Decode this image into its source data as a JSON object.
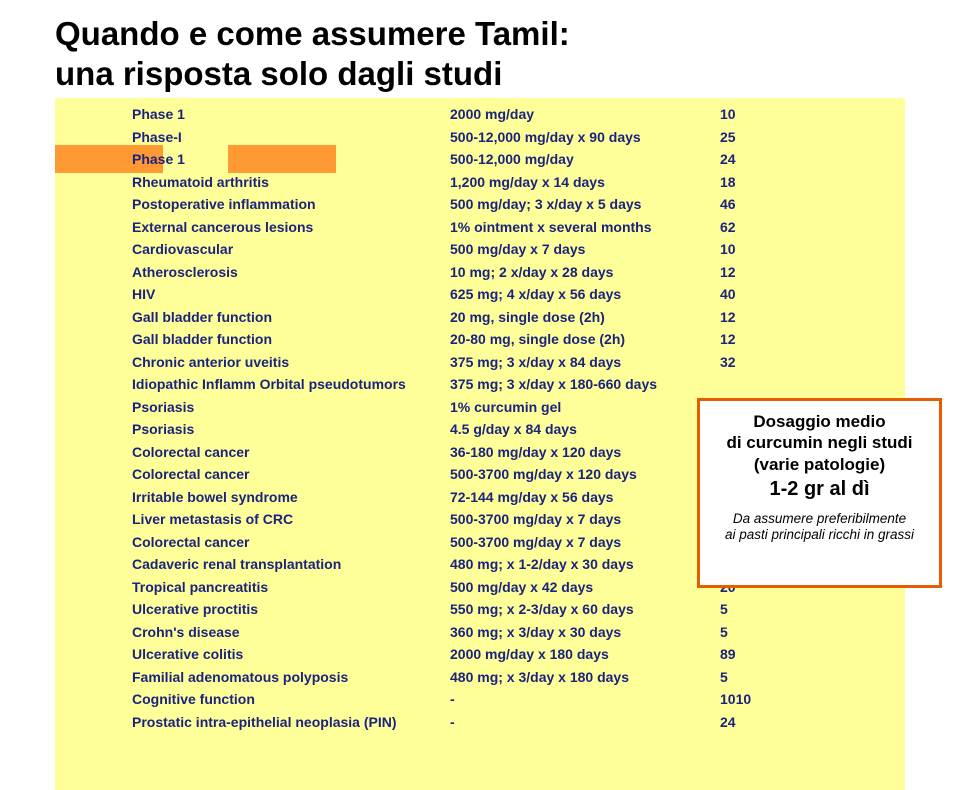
{
  "title": "Quando e come assumere Tamil:\nuna risposta solo dagli studi",
  "callout": {
    "text1": "Dosaggio medio\ndi curcumin negli studi\n(varie patologie)",
    "text2": "1-2 gr al dì",
    "note": "Da assumere preferibilmente\nai pasti principali ricchi in grassi"
  },
  "colors": {
    "page_bg": "#ffffff",
    "yellow_bg": "#ffff99",
    "orange_accent": "#ff9933",
    "callout_border": "#e65c00",
    "text_title": "#000000",
    "text_table": "#1a237e"
  },
  "fontsize": {
    "title": 33,
    "table": 14,
    "callout_main": 17,
    "callout_big": 20,
    "callout_small": 13.5
  },
  "rows": [
    {
      "cond": "Phase 1",
      "dose": "2000 mg/day",
      "n": "10"
    },
    {
      "cond": "Phase-I",
      "dose": "500-12,000 mg/day x 90 days",
      "n": "25"
    },
    {
      "cond": "Phase 1",
      "dose": "500-12,000 mg/day",
      "n": "24"
    },
    {
      "cond": "Rheumatoid arthritis",
      "dose": "1,200 mg/day x 14 days",
      "n": "18"
    },
    {
      "cond": "Postoperative inflammation",
      "dose": "500 mg/day; 3 x/day x 5 days",
      "n": "46"
    },
    {
      "cond": "External cancerous lesions",
      "dose": "1% ointment x several months",
      "n": "62"
    },
    {
      "cond": "Cardiovascular",
      "dose": "500 mg/day x 7 days",
      "n": "10"
    },
    {
      "cond": "Atherosclerosis",
      "dose": "10 mg; 2 x/day x 28 days",
      "n": "12"
    },
    {
      "cond": "HIV",
      "dose": "625 mg; 4 x/day x 56 days",
      "n": "40"
    },
    {
      "cond": "Gall bladder function",
      "dose": "20 mg, single dose (2h)",
      "n": "12"
    },
    {
      "cond": "Gall bladder function",
      "dose": "20-80 mg, single dose (2h)",
      "n": "12"
    },
    {
      "cond": "Chronic anterior uveitis",
      "dose": "375 mg; 3 x/day x 84 days",
      "n": "32"
    },
    {
      "cond": "Idiopathic Inflamm Orbital pseudotumors",
      "dose": "375 mg; 3 x/day x 180-660 days",
      "n": ""
    },
    {
      "cond": "Psoriasis",
      "dose": "1% curcumin gel",
      "n": ""
    },
    {
      "cond": "Psoriasis",
      "dose": "4.5 g/day x 84 days",
      "n": ""
    },
    {
      "cond": "Colorectal cancer",
      "dose": "36-180 mg/day x 120 days",
      "n": ""
    },
    {
      "cond": "Colorectal cancer",
      "dose": "500-3700 mg/day x 120 days",
      "n": ""
    },
    {
      "cond": "Irritable bowel syndrome",
      "dose": "72-144 mg/day x 56 days",
      "n": ""
    },
    {
      "cond": "Liver metastasis of CRC",
      "dose": "500-3700 mg/day x 7 days",
      "n": ""
    },
    {
      "cond": "Colorectal cancer",
      "dose": "500-3700 mg/day x 7 days",
      "n": ""
    },
    {
      "cond": "Cadaveric renal transplantation",
      "dose": "480 mg; x 1-2/day x 30 days",
      "n": ""
    },
    {
      "cond": "Tropical pancreatitis",
      "dose": "500 mg/day x 42 days",
      "n": "20"
    },
    {
      "cond": "Ulcerative proctitis",
      "dose": "550 mg; x 2-3/day x 60 days",
      "n": "5"
    },
    {
      "cond": "Crohn's disease",
      "dose": "360 mg; x 3/day x 30 days",
      "n": "5"
    },
    {
      "cond": "Ulcerative colitis",
      "dose": "2000 mg/day x 180 days",
      "n": "89"
    },
    {
      "cond": "Familial adenomatous polyposis",
      "dose": "480 mg; x 3/day x 180 days",
      "n": "5"
    },
    {
      "cond": "Cognitive function",
      "dose": "-",
      "n": "1010"
    },
    {
      "cond": "Prostatic intra-epithelial neoplasia (PIN)",
      "dose": "-",
      "n": "24"
    }
  ]
}
